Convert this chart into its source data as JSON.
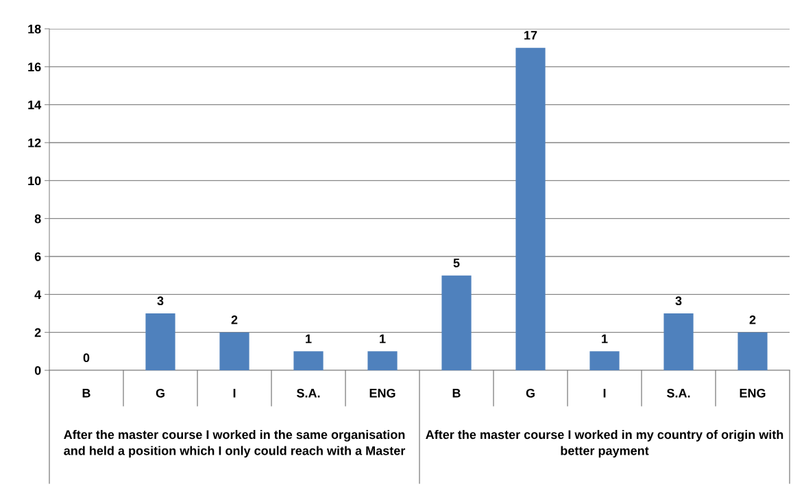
{
  "chart_data": {
    "type": "bar",
    "categories": [
      "B",
      "G",
      "I",
      "S.A.",
      "ENG",
      "B",
      "G",
      "I",
      "S.A.",
      "ENG"
    ],
    "values": [
      0,
      3,
      2,
      1,
      1,
      5,
      17,
      1,
      3,
      2
    ],
    "color": "#4f81bd",
    "ylim": [
      0,
      18
    ],
    "yticks": [
      0,
      2,
      4,
      6,
      8,
      10,
      12,
      14,
      16,
      18
    ],
    "grid": "y",
    "data_labels": true,
    "annotations": [
      "After the master course I worked in the same organisation and held a position which I only could reach with a Master",
      "After the master course I worked in my country of origin with better payment"
    ]
  }
}
